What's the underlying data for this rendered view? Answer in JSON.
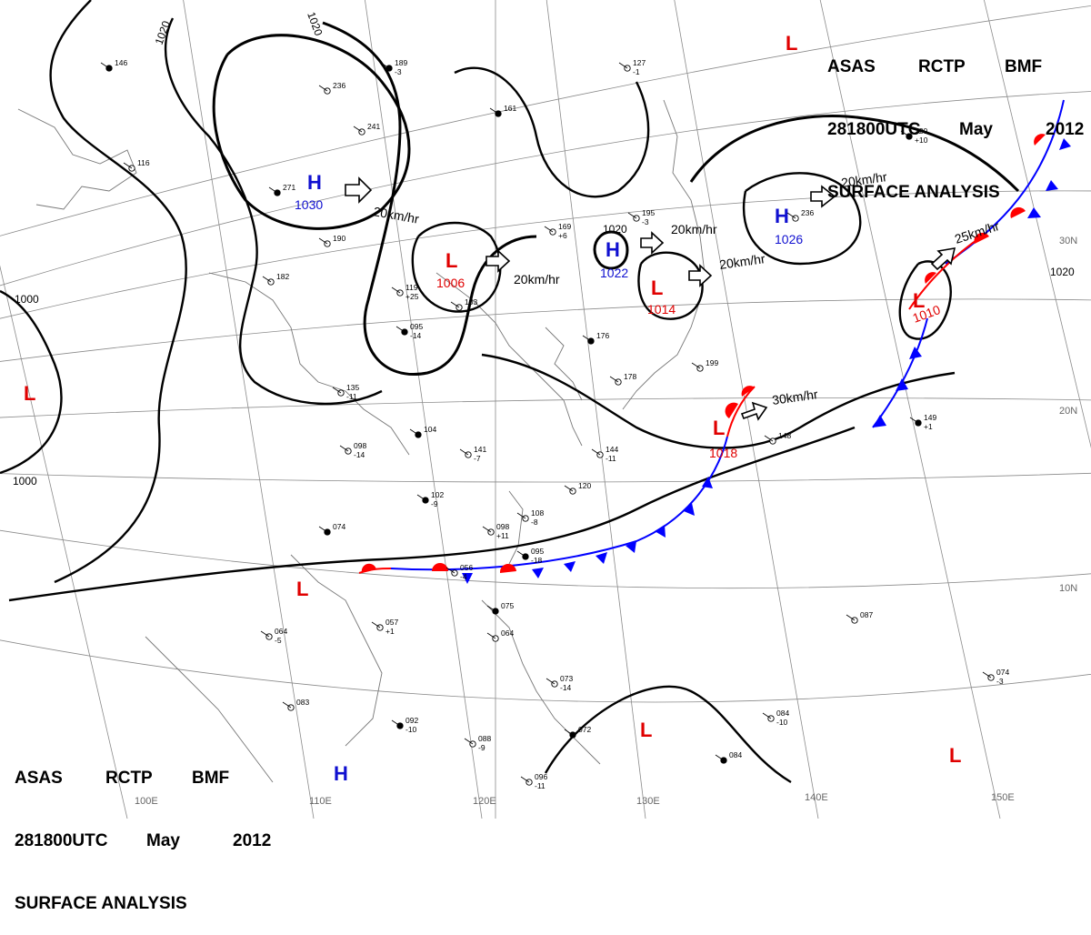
{
  "header": {
    "agency": "ASAS",
    "station": "RCTP",
    "office": "BMF",
    "time": "281800UTC",
    "month": "May",
    "year": "2012",
    "product": "SURFACE ANALYSIS"
  },
  "colors": {
    "high": "#1010d0",
    "low": "#e00000",
    "cold_front": "#0000ff",
    "warm_front": "#ff0000",
    "isobar": "#000000",
    "grid": "#888888",
    "coast": "#777777"
  },
  "pressure_centers": [
    {
      "type": "H",
      "value": "1030"
    },
    {
      "type": "H",
      "value": "1022"
    },
    {
      "type": "H",
      "value": "1026"
    },
    {
      "type": "H",
      "value": ""
    },
    {
      "type": "L",
      "value": "1006"
    },
    {
      "type": "L",
      "value": "1014"
    },
    {
      "type": "L",
      "value": "1010"
    },
    {
      "type": "L",
      "value": "1018"
    },
    {
      "type": "L",
      "value": ""
    },
    {
      "type": "L",
      "value": ""
    },
    {
      "type": "L",
      "value": ""
    },
    {
      "type": "L",
      "value": ""
    }
  ],
  "motion_labels": [
    "20km/hr",
    "20km/hr",
    "20km/hr",
    "20km/hr",
    "20km/hr",
    "25km/hr",
    "30km/hr"
  ],
  "isobar_labels": [
    "1020",
    "1020",
    "1020",
    "1020",
    "1000",
    "1000"
  ],
  "longitude_labels": [
    "100E",
    "110E",
    "120E",
    "130E",
    "140E",
    "150E"
  ],
  "latitude_labels": [
    "30N",
    "20N",
    "10N"
  ],
  "stations": [
    {
      "p": "189",
      "t": "-3"
    },
    {
      "p": "236",
      "t": ""
    },
    {
      "p": "241",
      "t": ""
    },
    {
      "p": "271",
      "t": ""
    },
    {
      "p": "190",
      "t": ""
    },
    {
      "p": "182",
      "t": ""
    },
    {
      "p": "146",
      "t": ""
    },
    {
      "p": "116",
      "t": ""
    },
    {
      "p": "119",
      "t": "+25"
    },
    {
      "p": "095",
      "t": "-14"
    },
    {
      "p": "103",
      "t": ""
    },
    {
      "p": "135",
      "t": "-11"
    },
    {
      "p": "104",
      "t": ""
    },
    {
      "p": "098",
      "t": "-14"
    },
    {
      "p": "141",
      "t": "-7"
    },
    {
      "p": "102",
      "t": "-9"
    },
    {
      "p": "169",
      "t": "+6"
    },
    {
      "p": "195",
      "t": "-3"
    },
    {
      "p": "161",
      "t": ""
    },
    {
      "p": "127",
      "t": "-1"
    },
    {
      "p": "199",
      "t": ""
    },
    {
      "p": "176",
      "t": ""
    },
    {
      "p": "144",
      "t": "-11"
    },
    {
      "p": "178",
      "t": ""
    },
    {
      "p": "220",
      "t": "+10"
    },
    {
      "p": "236",
      "t": ""
    },
    {
      "p": "148",
      "t": ""
    },
    {
      "p": "149",
      "t": "+1"
    },
    {
      "p": "108",
      "t": "-8"
    },
    {
      "p": "120",
      "t": ""
    },
    {
      "p": "095",
      "t": "-18"
    },
    {
      "p": "098",
      "t": "+11"
    },
    {
      "p": "056",
      "t": "-4"
    },
    {
      "p": "074",
      "t": ""
    },
    {
      "p": "064",
      "t": "-5"
    },
    {
      "p": "057",
      "t": "+1"
    },
    {
      "p": "075",
      "t": ""
    },
    {
      "p": "064",
      "t": ""
    },
    {
      "p": "073",
      "t": "-14"
    },
    {
      "p": "092",
      "t": "-10"
    },
    {
      "p": "088",
      "t": "-9"
    },
    {
      "p": "096",
      "t": "-11"
    },
    {
      "p": "072",
      "t": ""
    },
    {
      "p": "083",
      "t": ""
    },
    {
      "p": "084",
      "t": "-10"
    },
    {
      "p": "084",
      "t": ""
    },
    {
      "p": "087",
      "t": ""
    },
    {
      "p": "074",
      "t": "-3"
    }
  ]
}
